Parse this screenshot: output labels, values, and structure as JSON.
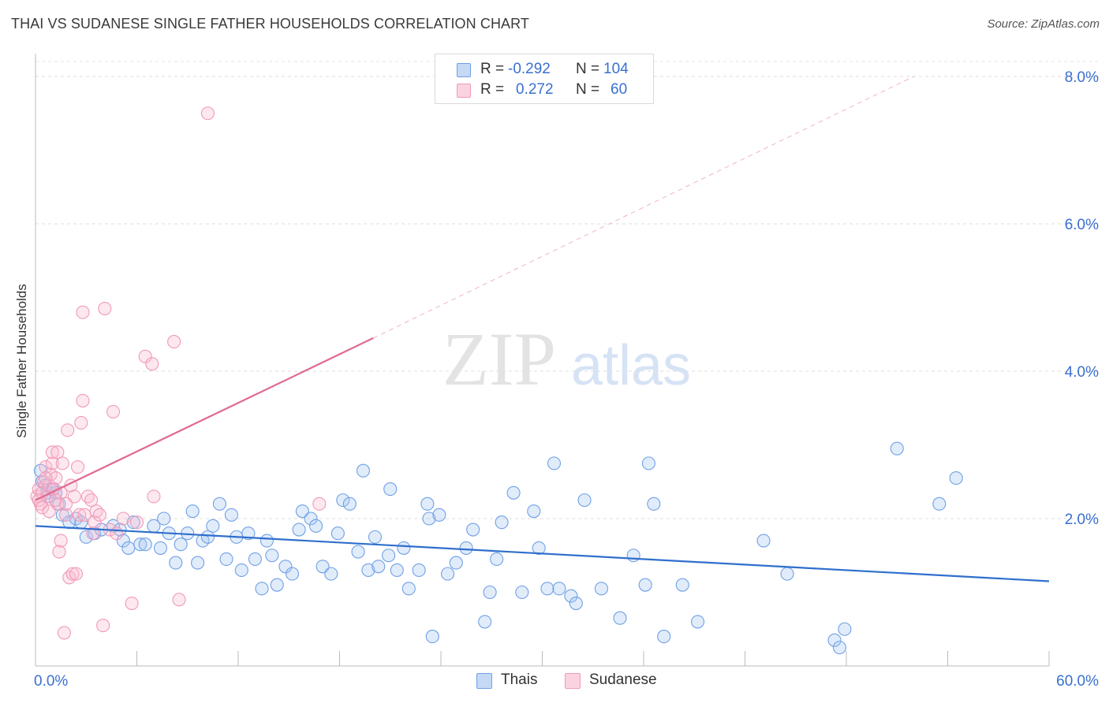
{
  "title": "THAI VS SUDANESE SINGLE FATHER HOUSEHOLDS CORRELATION CHART",
  "source": "Source: ZipAtlas.com",
  "watermark": {
    "zip": "ZIP",
    "atlas": "atlas"
  },
  "legend_top": [
    {
      "r_label": "R =",
      "r_value": "-0.292",
      "n_label": "N =",
      "n_value": "104",
      "color": "#6fa0e6"
    },
    {
      "r_label": "R =",
      "r_value": "0.272",
      "n_label": "N =",
      "n_value": "60",
      "color": "#f09ab8"
    }
  ],
  "chart_data": {
    "type": "scatter",
    "title": "THAI VS SUDANESE SINGLE FATHER HOUSEHOLDS CORRELATION CHART",
    "xlabel": "",
    "ylabel": "Single Father Households",
    "xlim": [
      0,
      60
    ],
    "ylim": [
      0,
      8
    ],
    "x_ticks": [
      0,
      6,
      12,
      18,
      24,
      30,
      36,
      42,
      48,
      54,
      60
    ],
    "x_tick_labels": [
      "0.0%",
      "60.0%"
    ],
    "y_ticks": [
      2,
      4,
      6,
      8
    ],
    "y_tick_labels": [
      "2.0%",
      "4.0%",
      "6.0%",
      "8.0%"
    ],
    "grid": true,
    "legend_position": "bottom-center",
    "series": [
      {
        "name": "Thais",
        "color": "#6fa0e6",
        "line_color": "#2f6fcc",
        "trend": {
          "x": [
            0,
            60
          ],
          "y": [
            1.9,
            1.15
          ],
          "dashed_to": null
        },
        "points": [
          [
            0.3,
            2.65
          ],
          [
            0.4,
            2.5
          ],
          [
            0.6,
            2.45
          ],
          [
            0.7,
            2.35
          ],
          [
            0.8,
            2.3
          ],
          [
            1.0,
            2.4
          ],
          [
            1.2,
            2.35
          ],
          [
            1.4,
            2.2
          ],
          [
            1.6,
            2.05
          ],
          [
            2.0,
            1.95
          ],
          [
            2.4,
            2.0
          ],
          [
            2.7,
            1.95
          ],
          [
            3.0,
            1.75
          ],
          [
            3.5,
            1.8
          ],
          [
            3.9,
            1.85
          ],
          [
            4.6,
            1.9
          ],
          [
            5.0,
            1.85
          ],
          [
            5.2,
            1.7
          ],
          [
            5.5,
            1.6
          ],
          [
            5.8,
            1.95
          ],
          [
            6.2,
            1.65
          ],
          [
            6.5,
            1.65
          ],
          [
            7.0,
            1.9
          ],
          [
            7.4,
            1.6
          ],
          [
            7.6,
            2.0
          ],
          [
            7.9,
            1.8
          ],
          [
            8.3,
            1.4
          ],
          [
            8.6,
            1.65
          ],
          [
            9.0,
            1.8
          ],
          [
            9.3,
            2.1
          ],
          [
            9.6,
            1.4
          ],
          [
            9.9,
            1.7
          ],
          [
            10.2,
            1.75
          ],
          [
            10.5,
            1.9
          ],
          [
            10.9,
            2.2
          ],
          [
            11.3,
            1.45
          ],
          [
            11.6,
            2.05
          ],
          [
            11.9,
            1.75
          ],
          [
            12.2,
            1.3
          ],
          [
            12.6,
            1.8
          ],
          [
            13.0,
            1.45
          ],
          [
            13.4,
            1.05
          ],
          [
            13.7,
            1.7
          ],
          [
            14.0,
            1.5
          ],
          [
            14.3,
            1.1
          ],
          [
            14.8,
            1.35
          ],
          [
            15.2,
            1.25
          ],
          [
            15.6,
            1.85
          ],
          [
            15.8,
            2.1
          ],
          [
            16.3,
            2.0
          ],
          [
            16.6,
            1.9
          ],
          [
            17.0,
            1.35
          ],
          [
            17.5,
            1.25
          ],
          [
            17.9,
            1.8
          ],
          [
            18.2,
            2.25
          ],
          [
            18.6,
            2.2
          ],
          [
            19.1,
            1.55
          ],
          [
            19.4,
            2.65
          ],
          [
            19.7,
            1.3
          ],
          [
            20.1,
            1.75
          ],
          [
            20.3,
            1.35
          ],
          [
            20.9,
            1.5
          ],
          [
            21.0,
            2.4
          ],
          [
            21.4,
            1.3
          ],
          [
            21.8,
            1.6
          ],
          [
            22.1,
            1.05
          ],
          [
            22.7,
            1.3
          ],
          [
            23.2,
            2.2
          ],
          [
            23.3,
            2.0
          ],
          [
            23.5,
            0.4
          ],
          [
            23.9,
            2.05
          ],
          [
            24.4,
            1.25
          ],
          [
            24.9,
            1.4
          ],
          [
            25.5,
            1.6
          ],
          [
            25.9,
            1.85
          ],
          [
            26.6,
            0.6
          ],
          [
            26.9,
            1.0
          ],
          [
            27.3,
            1.45
          ],
          [
            27.6,
            1.95
          ],
          [
            28.3,
            2.35
          ],
          [
            28.8,
            1.0
          ],
          [
            29.5,
            2.1
          ],
          [
            29.8,
            1.6
          ],
          [
            30.3,
            1.05
          ],
          [
            30.7,
            2.75
          ],
          [
            31.0,
            1.05
          ],
          [
            31.7,
            0.95
          ],
          [
            32.0,
            0.85
          ],
          [
            32.5,
            2.25
          ],
          [
            33.5,
            1.05
          ],
          [
            34.6,
            0.65
          ],
          [
            35.4,
            1.5
          ],
          [
            36.1,
            1.1
          ],
          [
            36.3,
            2.75
          ],
          [
            36.6,
            2.2
          ],
          [
            37.2,
            0.4
          ],
          [
            38.3,
            1.1
          ],
          [
            39.2,
            0.6
          ],
          [
            43.1,
            1.7
          ],
          [
            44.5,
            1.25
          ],
          [
            47.3,
            0.35
          ],
          [
            47.6,
            0.25
          ],
          [
            47.9,
            0.5
          ],
          [
            51.0,
            2.95
          ],
          [
            53.5,
            2.2
          ],
          [
            54.5,
            2.55
          ]
        ]
      },
      {
        "name": "Sudanese",
        "color": "#f09ab8",
        "line_color": "#e06a93",
        "trend": {
          "x": [
            0,
            20
          ],
          "y": [
            2.25,
            4.45
          ],
          "dashed_to": [
            52,
            8.0
          ]
        },
        "points": [
          [
            0.1,
            2.3
          ],
          [
            0.2,
            2.4
          ],
          [
            0.3,
            2.2
          ],
          [
            0.4,
            2.35
          ],
          [
            0.5,
            2.5
          ],
          [
            0.6,
            2.7
          ],
          [
            0.7,
            2.3
          ],
          [
            0.8,
            2.45
          ],
          [
            0.9,
            2.6
          ],
          [
            1.0,
            2.75
          ],
          [
            1.0,
            2.9
          ],
          [
            1.1,
            2.4
          ],
          [
            1.2,
            2.55
          ],
          [
            1.3,
            2.2
          ],
          [
            1.3,
            2.9
          ],
          [
            1.4,
            1.55
          ],
          [
            1.5,
            1.7
          ],
          [
            1.5,
            2.35
          ],
          [
            1.6,
            2.75
          ],
          [
            1.7,
            0.45
          ],
          [
            1.8,
            2.05
          ],
          [
            1.9,
            3.2
          ],
          [
            2.0,
            1.2
          ],
          [
            2.1,
            2.45
          ],
          [
            2.2,
            1.25
          ],
          [
            2.3,
            2.3
          ],
          [
            2.4,
            1.25
          ],
          [
            2.5,
            2.7
          ],
          [
            2.6,
            2.05
          ],
          [
            2.7,
            3.3
          ],
          [
            2.8,
            4.8
          ],
          [
            2.8,
            3.6
          ],
          [
            3.1,
            2.3
          ],
          [
            3.3,
            2.25
          ],
          [
            3.4,
            1.8
          ],
          [
            3.5,
            1.95
          ],
          [
            3.6,
            2.1
          ],
          [
            3.8,
            2.05
          ],
          [
            4.0,
            0.55
          ],
          [
            4.1,
            4.85
          ],
          [
            4.4,
            1.85
          ],
          [
            4.6,
            3.45
          ],
          [
            4.8,
            1.8
          ],
          [
            5.2,
            2.0
          ],
          [
            5.7,
            0.85
          ],
          [
            6.0,
            1.95
          ],
          [
            6.5,
            4.2
          ],
          [
            6.9,
            4.1
          ],
          [
            7.0,
            2.3
          ],
          [
            8.2,
            4.4
          ],
          [
            8.5,
            0.9
          ],
          [
            10.2,
            7.5
          ],
          [
            16.8,
            2.2
          ],
          [
            0.2,
            2.25
          ],
          [
            0.4,
            2.15
          ],
          [
            0.8,
            2.1
          ],
          [
            1.2,
            2.25
          ],
          [
            1.8,
            2.2
          ],
          [
            2.9,
            2.05
          ],
          [
            0.6,
            2.55
          ]
        ]
      }
    ]
  }
}
